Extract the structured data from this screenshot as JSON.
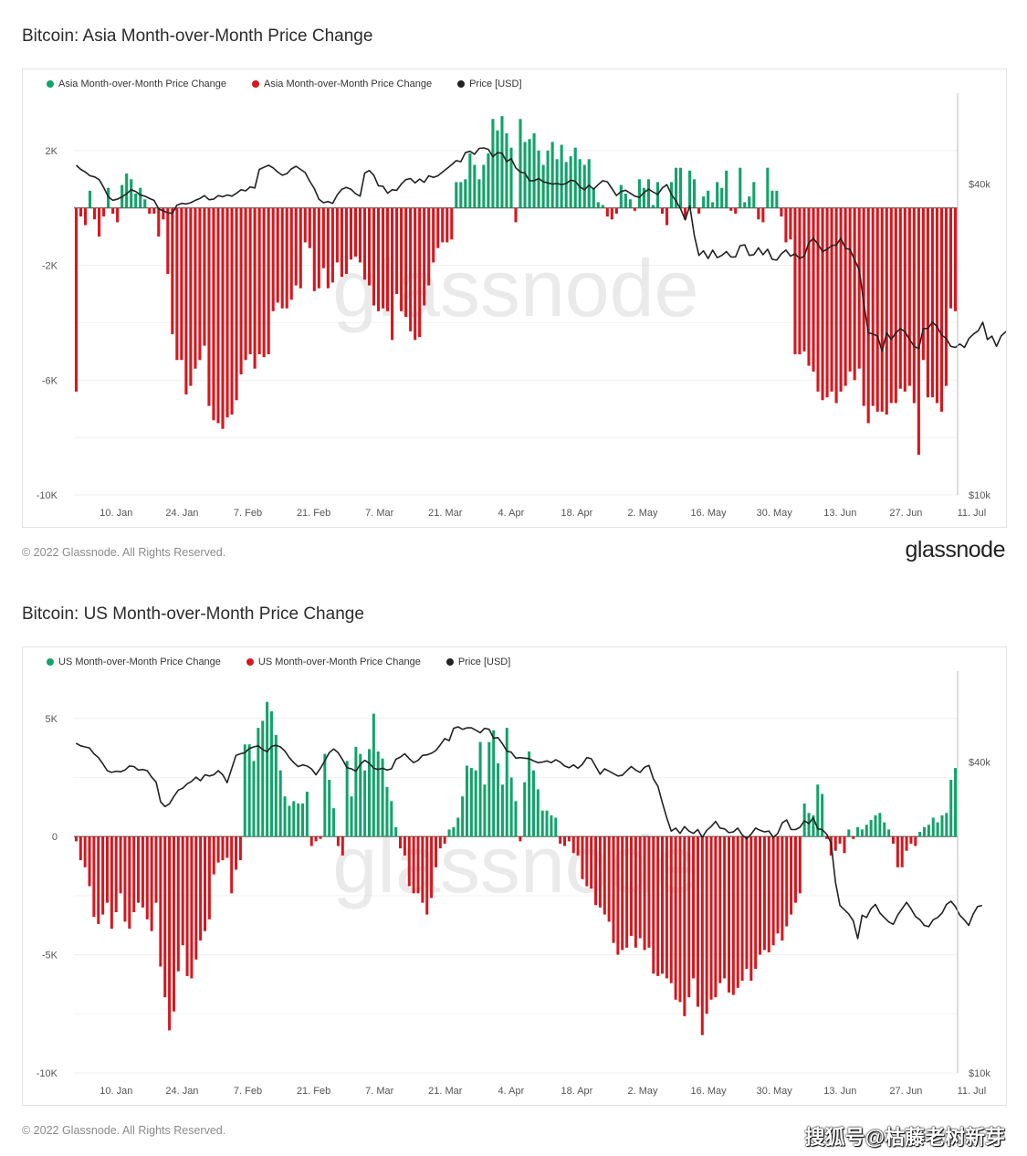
{
  "colors": {
    "green": "#11a36b",
    "red": "#d9161d",
    "price": "#222222"
  },
  "footer": {
    "copyright": "© 2022 Glassnode. All Rights Reserved.",
    "brand": "glassnode",
    "watermark": "搜狐号@枯藤老树新芽"
  },
  "x_ticks": [
    "10. Jan",
    "24. Jan",
    "7. Feb",
    "21. Feb",
    "7. Mar",
    "21. Mar",
    "4. Apr",
    "18. Apr",
    "2. May",
    "16. May",
    "30. May",
    "13. Jun",
    "27. Jun",
    "11. Jul"
  ],
  "chart_data": [
    {
      "type": "bar",
      "title": "Bitcoin: Asia Month-over-Month Price Change",
      "legend": [
        "Asia Month-over-Month Price Change",
        "Asia Month-over-Month Price Change",
        "Price [USD]"
      ],
      "watermark": "glassnode",
      "y_ticks": [
        "2K",
        "-2K",
        "-6K",
        "-10K"
      ],
      "y_tick_values": [
        2000,
        -2000,
        -6000,
        -10000
      ],
      "y_right_ticks": [
        "$40k",
        "$10k"
      ],
      "y_right_values": [
        40000,
        10000
      ],
      "ylim": [
        -10000,
        4000
      ],
      "y_right_lim": [
        10000,
        60000
      ],
      "x_days": [
        0,
        188
      ],
      "bars": [
        -6400,
        -300,
        -600,
        600,
        -400,
        -1000,
        -300,
        700,
        -200,
        -500,
        800,
        1200,
        1000,
        500,
        700,
        300,
        -200,
        -200,
        -1000,
        -400,
        -2300,
        -4400,
        -5300,
        -5300,
        -6500,
        -6200,
        -5600,
        -5300,
        -4800,
        -6900,
        -7400,
        -7500,
        -7700,
        -7300,
        -7200,
        -6700,
        -5800,
        -5300,
        -5100,
        -5600,
        -5100,
        -5200,
        -5100,
        -3600,
        -3300,
        -3500,
        -3500,
        -3200,
        -2700,
        -2800,
        -1200,
        -1400,
        -2900,
        -2800,
        -2100,
        -2800,
        -2600,
        -1900,
        -2400,
        -2300,
        -1800,
        -1700,
        -1900,
        -2500,
        -2700,
        -3400,
        -3600,
        -3500,
        -3600,
        -4600,
        -3000,
        -3600,
        -3800,
        -4300,
        -4600,
        -4500,
        -3400,
        -2700,
        -1900,
        -1400,
        -1200,
        -1200,
        -1100,
        900,
        900,
        1000,
        1900,
        1500,
        1000,
        1500,
        1900,
        3100,
        2700,
        3200,
        2600,
        2100,
        -500,
        3100,
        2300,
        2400,
        2600,
        2000,
        1500,
        2000,
        2300,
        1700,
        2200,
        1600,
        1800,
        2100,
        1700,
        1500,
        1700,
        700,
        200,
        100,
        -300,
        -400,
        -200,
        800,
        500,
        300,
        -100,
        1000,
        700,
        1000,
        100,
        900,
        -200,
        -600,
        900,
        1400,
        1400,
        -400,
        1300,
        1000,
        -200,
        400,
        600,
        200,
        900,
        700,
        1300,
        -100,
        -200,
        1400,
        200,
        400,
        900,
        -400,
        -500,
        1400,
        600,
        600,
        -300,
        -1200,
        -1100,
        -5100,
        -5100,
        -5000,
        -5500,
        -5700,
        -6400,
        -6700,
        -6600,
        -6400,
        -6800,
        -6400,
        -6200,
        -5700,
        -6000,
        -5600,
        -6900,
        -7500,
        -6900,
        -7100,
        -7100,
        -7200,
        -6800,
        -6800,
        -6300,
        -6400,
        -6200,
        -6800,
        -8600,
        -5300,
        -6600,
        -6600,
        -6800,
        -7100,
        -6200,
        -3500,
        -3600
      ],
      "price": [
        43500,
        42700,
        42200,
        41500,
        41300,
        40800,
        39400,
        37800,
        37200,
        37400,
        37800,
        38300,
        39000,
        38700,
        38100,
        37900,
        37500,
        37200,
        35800,
        35500,
        35200,
        35100,
        36400,
        36700,
        36600,
        36800,
        37200,
        37500,
        38000,
        37300,
        37400,
        38000,
        37800,
        38100,
        37900,
        38400,
        39000,
        38800,
        39500,
        39300,
        42700,
        43100,
        43500,
        43000,
        42200,
        41600,
        41900,
        42800,
        43300,
        42700,
        42100,
        40500,
        39200,
        37400,
        36800,
        37000,
        36700,
        38100,
        39100,
        39400,
        39100,
        38300,
        37900,
        42000,
        42500,
        41600,
        39700,
        39600,
        38400,
        39000,
        38900,
        40000,
        40800,
        41000,
        40200,
        40900,
        40300,
        41500,
        41200,
        41500,
        42200,
        42900,
        43600,
        44400,
        44200,
        46000,
        46300,
        45700,
        46900,
        47000,
        46700,
        45200,
        46000,
        45900,
        44200,
        44800,
        43000,
        42200,
        42000,
        40600,
        40600,
        41000,
        40400,
        40200,
        40000,
        40100,
        39900,
        40100,
        40700,
        40500,
        39500,
        39000,
        39800,
        39100,
        39900,
        40600,
        40400,
        39200,
        38000,
        38700,
        38900,
        38400,
        37900,
        37700,
        38500,
        39100,
        38600,
        38200,
        39300,
        39900,
        38200,
        37100,
        35800,
        34100,
        36300,
        31800,
        29100,
        29700,
        28700,
        29800,
        28800,
        29100,
        29600,
        28900,
        28900,
        30400,
        30500,
        29100,
        29200,
        30100,
        29200,
        29900,
        28600,
        28500,
        29300,
        29800,
        29000,
        29300,
        28700,
        29000,
        30800,
        31400,
        30600,
        29600,
        29900,
        30400,
        30500,
        31400,
        30000,
        29900,
        28500,
        27300,
        23500,
        20600,
        20500,
        20300,
        19000,
        20600,
        20000,
        20600,
        21000,
        20700,
        20000,
        19400,
        19200,
        21000,
        21000,
        21600,
        21200,
        20400,
        20100,
        19400,
        19300,
        19600,
        19300,
        20100,
        20500,
        20800,
        21600,
        20000,
        20300,
        19400,
        20300,
        20700,
        20700
      ]
    },
    {
      "type": "bar",
      "title": "Bitcoin: US Month-over-Month Price Change",
      "legend": [
        "US Month-over-Month Price Change",
        "US Month-over-Month Price Change",
        "Price [USD]"
      ],
      "watermark": "glassnode",
      "y_ticks": [
        "5K",
        "0",
        "-5K",
        "-10K"
      ],
      "y_tick_values": [
        5000,
        0,
        -5000,
        -10000
      ],
      "y_right_ticks": [
        "$40k",
        "$10k"
      ],
      "y_right_values": [
        40000,
        10000
      ],
      "ylim": [
        -10000,
        7000
      ],
      "y_right_lim": [
        10000,
        60000
      ],
      "x_days": [
        0,
        188
      ],
      "bars": [
        -200,
        -1000,
        -1300,
        -2100,
        -3400,
        -3700,
        -3300,
        -2800,
        -3900,
        -3200,
        -2400,
        -3600,
        -3900,
        -3200,
        -2800,
        -3000,
        -3500,
        -4000,
        -2800,
        -5500,
        -6800,
        -8200,
        -7400,
        -5700,
        -4600,
        -5900,
        -6000,
        -5200,
        -4400,
        -4000,
        -3500,
        -1600,
        -1100,
        -1000,
        -900,
        -2400,
        -1400,
        -1000,
        3900,
        3900,
        3200,
        4600,
        4900,
        5700,
        5300,
        4300,
        2800,
        1700,
        1300,
        1500,
        1400,
        1400,
        1900,
        -400,
        -200,
        -100,
        3500,
        2400,
        1200,
        -400,
        -800,
        3200,
        1700,
        3800,
        3500,
        2800,
        3700,
        5200,
        3600,
        3300,
        2100,
        1500,
        400,
        -500,
        -800,
        -2100,
        -2400,
        -2400,
        -2800,
        -3300,
        -2600,
        -1300,
        -500,
        -300,
        300,
        400,
        800,
        1700,
        3000,
        2900,
        2800,
        4000,
        2200,
        4000,
        4500,
        3100,
        2200,
        4600,
        2500,
        1500,
        -200,
        2300,
        3600,
        2800,
        2000,
        1100,
        1100,
        900,
        800,
        -300,
        -400,
        -200,
        -700,
        -800,
        -1800,
        -2100,
        -2200,
        -2900,
        -3000,
        -3300,
        -3600,
        -4500,
        -5000,
        -4800,
        -4700,
        -4200,
        -4700,
        -4300,
        -4800,
        -4700,
        -5800,
        -5900,
        -5800,
        -6000,
        -6200,
        -6900,
        -7000,
        -7600,
        -6800,
        -6000,
        -7200,
        -8400,
        -7500,
        -6900,
        -6800,
        -6200,
        -6000,
        -6600,
        -6700,
        -6400,
        -6100,
        -5600,
        -6100,
        -5600,
        -5000,
        -4800,
        -4900,
        -4600,
        -4100,
        -4400,
        -3800,
        -3300,
        -2800,
        -2400,
        1400,
        1000,
        900,
        2200,
        1800,
        -100,
        -800,
        -600,
        -300,
        -700,
        300,
        -100,
        400,
        300,
        500,
        700,
        900,
        1000,
        600,
        300,
        -300,
        -1300,
        -1300,
        -600,
        -300,
        -400,
        200,
        400,
        500,
        800,
        600,
        900,
        1000,
        2400,
        2900
      ],
      "price": [
        43500,
        43000,
        42800,
        42600,
        41500,
        40800,
        39700,
        38500,
        38200,
        38400,
        38300,
        38600,
        39300,
        39200,
        38600,
        38700,
        38500,
        37400,
        36600,
        33500,
        32800,
        33200,
        34300,
        35300,
        35600,
        36300,
        36700,
        37400,
        36800,
        37800,
        37600,
        37800,
        38500,
        37800,
        36500,
        38800,
        41200,
        41500,
        41700,
        42500,
        42800,
        43000,
        42300,
        41900,
        42900,
        43100,
        42800,
        42000,
        40800,
        39900,
        39200,
        39500,
        39300,
        38800,
        37800,
        38900,
        40200,
        41700,
        42400,
        41700,
        40400,
        39000,
        38800,
        38400,
        39600,
        40300,
        39800,
        38900,
        38700,
        38900,
        38600,
        38800,
        40500,
        40900,
        41500,
        40600,
        39900,
        40300,
        41200,
        41300,
        41600,
        42100,
        43200,
        44400,
        44000,
        46500,
        46800,
        46300,
        46600,
        46600,
        46100,
        45600,
        46500,
        46300,
        44500,
        44600,
        43400,
        42000,
        41800,
        40700,
        40800,
        40700,
        40600,
        40200,
        39900,
        40000,
        40200,
        39900,
        40400,
        40000,
        39300,
        39000,
        39500,
        38900,
        39600,
        40800,
        40600,
        39200,
        37900,
        38800,
        38400,
        38000,
        37600,
        37700,
        38500,
        39200,
        38600,
        38200,
        39100,
        39400,
        37100,
        35900,
        33400,
        31200,
        29400,
        29800,
        29100,
        30000,
        29400,
        29100,
        29600,
        28600,
        29500,
        30000,
        30700,
        29800,
        29700,
        29200,
        29300,
        29800,
        28900,
        28400,
        29000,
        29800,
        29500,
        29300,
        29400,
        28600,
        29100,
        30500,
        30900,
        29600,
        29600,
        29900,
        30800,
        30400,
        31200,
        29700,
        29600,
        29000,
        27900,
        23400,
        21100,
        20700,
        20300,
        19700,
        18200,
        20200,
        20000,
        20800,
        21200,
        20400,
        20000,
        19600,
        19400,
        20200,
        20800,
        21400,
        20800,
        20100,
        19800,
        19300,
        19200,
        19800,
        20000,
        20400,
        21200,
        21500,
        21000,
        20200,
        19800,
        19300,
        20300,
        21000,
        21100
      ]
    }
  ]
}
